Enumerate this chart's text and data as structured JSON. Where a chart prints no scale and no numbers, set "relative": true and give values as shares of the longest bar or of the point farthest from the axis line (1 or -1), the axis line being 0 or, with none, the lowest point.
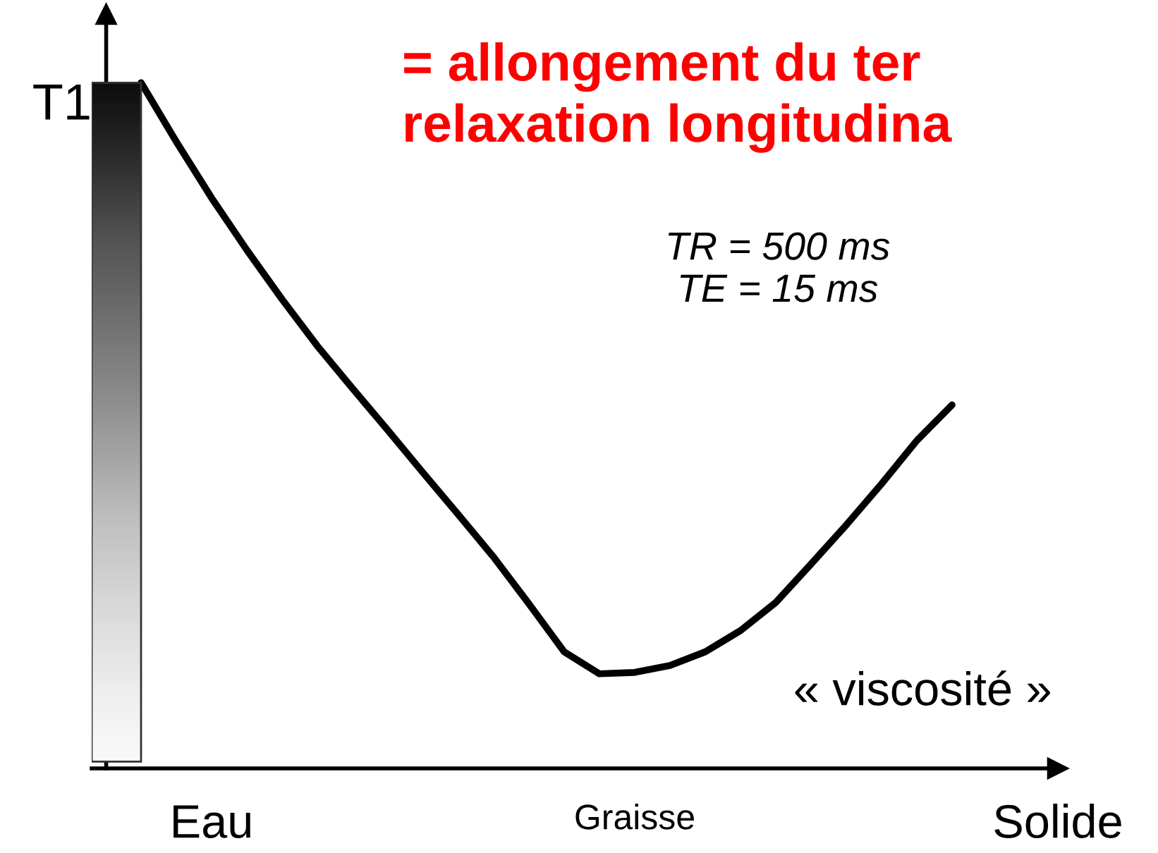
{
  "chart_data": {
    "type": "line",
    "relative": true,
    "title": "= allongement du ter\nrelaxation longitudina",
    "ylabel": "T1",
    "categories": [
      null,
      null,
      "Eau",
      null,
      null,
      null,
      null,
      null,
      null,
      null,
      null,
      null,
      null,
      null,
      "Graisse",
      null,
      null,
      null,
      null,
      null,
      null,
      null,
      null,
      null,
      null,
      null,
      "Solide"
    ],
    "series": [
      {
        "color": "#000000",
        "values": [
          1.0,
          0.914,
          0.832,
          0.756,
          0.684,
          0.616,
          0.554,
          0.493,
          0.431,
          0.37,
          0.308,
          0.24,
          0.17,
          0.138,
          0.14,
          0.15,
          0.17,
          0.201,
          0.242,
          0.298,
          0.355,
          0.415,
          0.478,
          0.53,
          null,
          null,
          null
        ]
      }
    ],
    "annotations": [
      "TR = 500 ms\nTE = 15 ms",
      "« viscosité »"
    ],
    "marker": "none",
    "line_style": "solid",
    "grid": false,
    "legend": false
  }
}
